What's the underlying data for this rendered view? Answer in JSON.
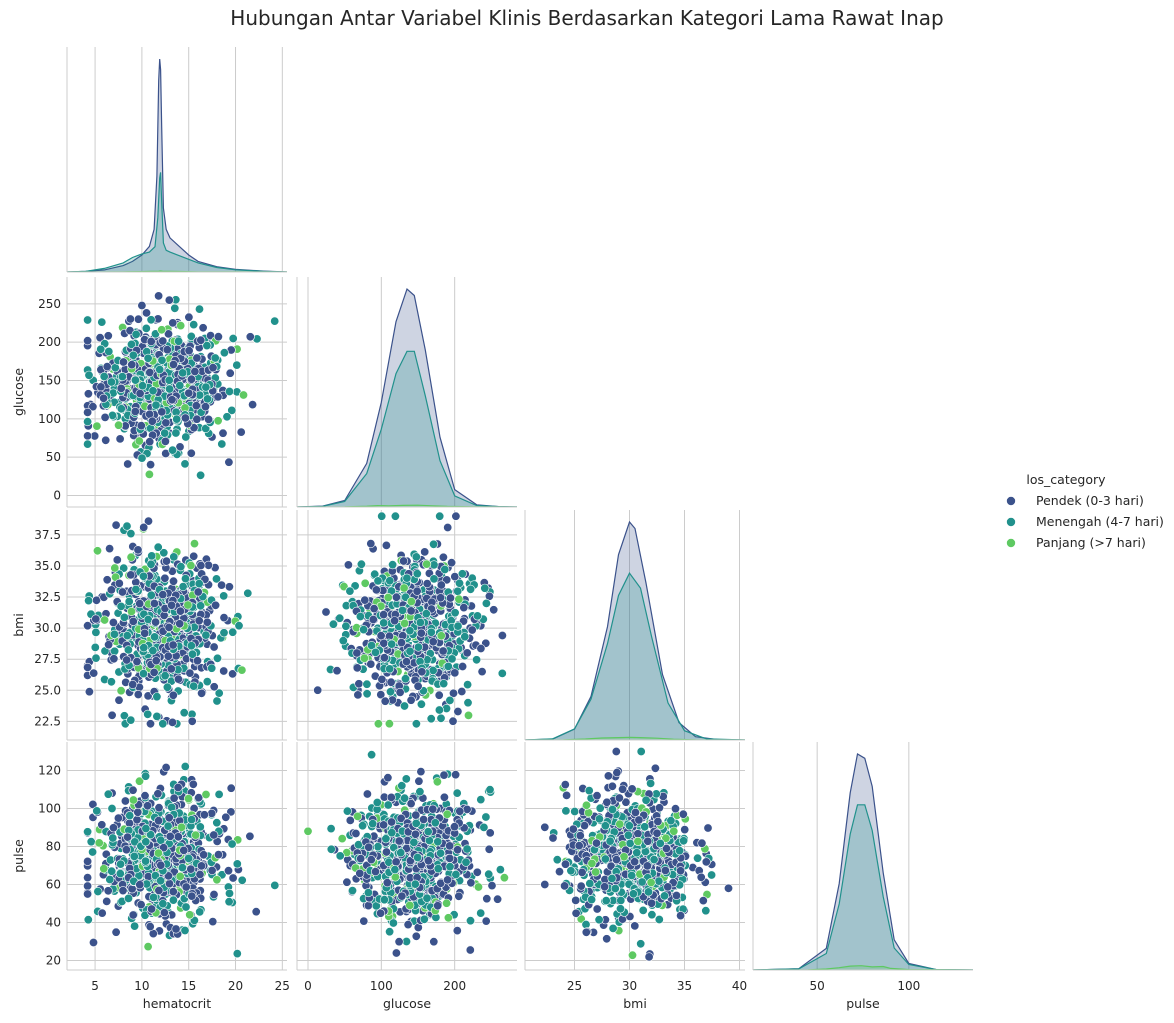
{
  "title": "Hubungan Antar Variabel Klinis Berdasarkan Kategori Lama Rawat Inap",
  "chart_data": {
    "type": "scatter",
    "variables": [
      "hematocrit",
      "glucose",
      "bmi",
      "pulse"
    ],
    "legend_title": "los_category",
    "legend_placement": "right",
    "grid": true,
    "corner": true,
    "hue_colors": [
      "#3b528b",
      "#21918c",
      "#5ec962"
    ],
    "series": [
      {
        "name": "Pendek (0-3 hari)",
        "weight": 1.0
      },
      {
        "name": "Menengah (4-7 hari)",
        "weight": 0.85
      },
      {
        "name": "Panjang (>7 hari)",
        "weight": 0.09
      }
    ],
    "axes": {
      "hematocrit": {
        "label": "hematocrit",
        "range": [
          2,
          25.5
        ],
        "ticks": [
          5,
          10,
          15,
          20,
          25
        ],
        "tick_labels": [
          "5",
          "10",
          "15",
          "20",
          "25"
        ]
      },
      "glucose": {
        "label": "glucose",
        "range": [
          -15,
          285
        ],
        "ticks": [
          0,
          100,
          200
        ],
        "tick_labels": [
          "0",
          "100",
          "200"
        ],
        "y_range": [
          -15,
          285
        ],
        "y_ticks": [
          0,
          50,
          100,
          150,
          200,
          250
        ],
        "y_tick_labels": [
          "0",
          "50",
          "100",
          "150",
          "200",
          "250"
        ]
      },
      "bmi": {
        "label": "bmi",
        "range": [
          20.5,
          40.5
        ],
        "ticks": [
          25,
          30,
          35,
          40
        ],
        "tick_labels": [
          "25",
          "30",
          "35",
          "40"
        ],
        "y_range": [
          21,
          39.5
        ],
        "y_ticks": [
          22.5,
          25.0,
          27.5,
          30.0,
          32.5,
          35.0,
          37.5
        ],
        "y_tick_labels": [
          "22.5",
          "25.0",
          "27.5",
          "30.0",
          "32.5",
          "35.0",
          "37.5"
        ]
      },
      "pulse": {
        "label": "pulse",
        "range": [
          15,
          135
        ],
        "ticks": [
          50,
          100
        ],
        "tick_labels": [
          "50",
          "100"
        ],
        "y_range": [
          15,
          135
        ],
        "y_ticks": [
          20,
          40,
          60,
          80,
          100,
          120
        ],
        "y_tick_labels": [
          "20",
          "40",
          "60",
          "80",
          "100",
          "120"
        ]
      }
    },
    "distributions": {
      "hematocrit": [
        {
          "series": "Pendek (0-3 hari)",
          "x": [
            2,
            4,
            6,
            8,
            9,
            10,
            10.8,
            11.3,
            11.6,
            11.8,
            11.9,
            12.0,
            12.1,
            12.3,
            12.6,
            13,
            14,
            15,
            16,
            18,
            20,
            23,
            25.5
          ],
          "density": [
            0,
            0.003,
            0.01,
            0.03,
            0.05,
            0.08,
            0.12,
            0.2,
            0.45,
            0.9,
            1.0,
            0.95,
            0.7,
            0.3,
            0.2,
            0.16,
            0.12,
            0.08,
            0.05,
            0.025,
            0.012,
            0.004,
            0
          ]
        },
        {
          "series": "Menengah (4-7 hari)",
          "x": [
            2,
            4,
            6,
            8,
            9,
            10,
            10.8,
            11.4,
            11.7,
            11.9,
            12.0,
            12.1,
            12.3,
            12.6,
            13,
            14,
            15,
            16,
            18,
            20,
            23,
            25.5
          ],
          "density": [
            0,
            0.004,
            0.02,
            0.05,
            0.08,
            0.1,
            0.11,
            0.14,
            0.3,
            0.52,
            0.55,
            0.4,
            0.16,
            0.12,
            0.11,
            0.09,
            0.07,
            0.05,
            0.025,
            0.012,
            0.004,
            0
          ]
        },
        {
          "series": "Panjang (>7 hari)",
          "x": [
            2,
            5,
            8,
            10,
            11,
            11.8,
            12.0,
            12.2,
            13,
            14,
            16,
            20,
            25.5
          ],
          "density": [
            0,
            0.002,
            0.01,
            0.02,
            0.03,
            0.04,
            0.05,
            0.04,
            0.03,
            0.025,
            0.01,
            0.003,
            0
          ]
        }
      ],
      "glucose": [
        {
          "series": "Pendek (0-3 hari)",
          "x": [
            -15,
            20,
            50,
            80,
            100,
            120,
            135,
            145,
            160,
            180,
            200,
            230,
            260,
            285
          ],
          "density": [
            0,
            0.004,
            0.03,
            0.2,
            0.48,
            0.85,
            1.0,
            0.97,
            0.72,
            0.32,
            0.08,
            0.01,
            0.002,
            0
          ]
        },
        {
          "series": "Menengah (4-7 hari)",
          "x": [
            -15,
            20,
            50,
            80,
            100,
            120,
            135,
            145,
            160,
            180,
            200,
            230,
            260,
            285
          ],
          "density": [
            0,
            0.004,
            0.03,
            0.18,
            0.42,
            0.72,
            0.84,
            0.84,
            0.6,
            0.25,
            0.06,
            0.008,
            0.002,
            0
          ]
        },
        {
          "series": "Panjang (>7 hari)",
          "x": [
            -15,
            50,
            80,
            95,
            110,
            130,
            150,
            170,
            190,
            230,
            285
          ],
          "density": [
            0,
            0.005,
            0.04,
            0.07,
            0.06,
            0.08,
            0.09,
            0.06,
            0.03,
            0.003,
            0
          ]
        }
      ],
      "bmi": [
        {
          "series": "Pendek (0-3 hari)",
          "x": [
            20.5,
            23,
            25,
            26.5,
            28,
            29,
            30,
            30.5,
            31.5,
            33,
            34.5,
            36,
            38,
            40.5
          ],
          "density": [
            0,
            0.004,
            0.05,
            0.2,
            0.52,
            0.85,
            1.0,
            0.97,
            0.72,
            0.3,
            0.08,
            0.015,
            0.002,
            0
          ]
        },
        {
          "series": "Menengah (4-7 hari)",
          "x": [
            20.5,
            23,
            25,
            26.5,
            28,
            29,
            30,
            31,
            32,
            33.5,
            35,
            37,
            40.5
          ],
          "density": [
            0,
            0.006,
            0.06,
            0.22,
            0.52,
            0.78,
            0.9,
            0.82,
            0.56,
            0.2,
            0.05,
            0.006,
            0
          ]
        },
        {
          "series": "Panjang (>7 hari)",
          "x": [
            20.5,
            24,
            26,
            27.5,
            29,
            30,
            31,
            32.5,
            34,
            36,
            40.5
          ],
          "density": [
            0,
            0.01,
            0.05,
            0.1,
            0.12,
            0.14,
            0.12,
            0.09,
            0.04,
            0.008,
            0
          ]
        }
      ],
      "pulse": [
        {
          "series": "Pendek (0-3 hari)",
          "x": [
            15,
            40,
            55,
            62,
            68,
            72,
            76,
            80,
            86,
            92,
            100,
            115,
            135
          ],
          "density": [
            0,
            0.006,
            0.1,
            0.4,
            0.82,
            1.0,
            0.98,
            0.85,
            0.45,
            0.14,
            0.03,
            0.002,
            0
          ]
        },
        {
          "series": "Menengah (4-7 hari)",
          "x": [
            15,
            40,
            55,
            62,
            68,
            72,
            76,
            80,
            86,
            92,
            100,
            115,
            135
          ],
          "density": [
            0,
            0.006,
            0.09,
            0.36,
            0.74,
            0.9,
            0.9,
            0.76,
            0.4,
            0.12,
            0.03,
            0.002,
            0
          ]
        },
        {
          "series": "Panjang (>7 hari)",
          "x": [
            15,
            45,
            55,
            62,
            68,
            74,
            80,
            86,
            90,
            100,
            135
          ],
          "density": [
            0,
            0.01,
            0.05,
            0.12,
            0.2,
            0.22,
            0.16,
            0.18,
            0.08,
            0.02,
            0
          ]
        }
      ]
    },
    "scatter_distribution": {
      "hematocrit": {
        "center": 12.0,
        "spread": 3.2,
        "min": 4.2,
        "max": 24.2
      },
      "glucose": {
        "center": 143,
        "spread": 42,
        "min": 0,
        "max": 272
      },
      "bmi": {
        "center": 30,
        "spread": 2.9,
        "min": 22.3,
        "max": 39
      },
      "pulse": {
        "center": 75,
        "spread": 17,
        "min": 21,
        "max": 130
      }
    }
  }
}
